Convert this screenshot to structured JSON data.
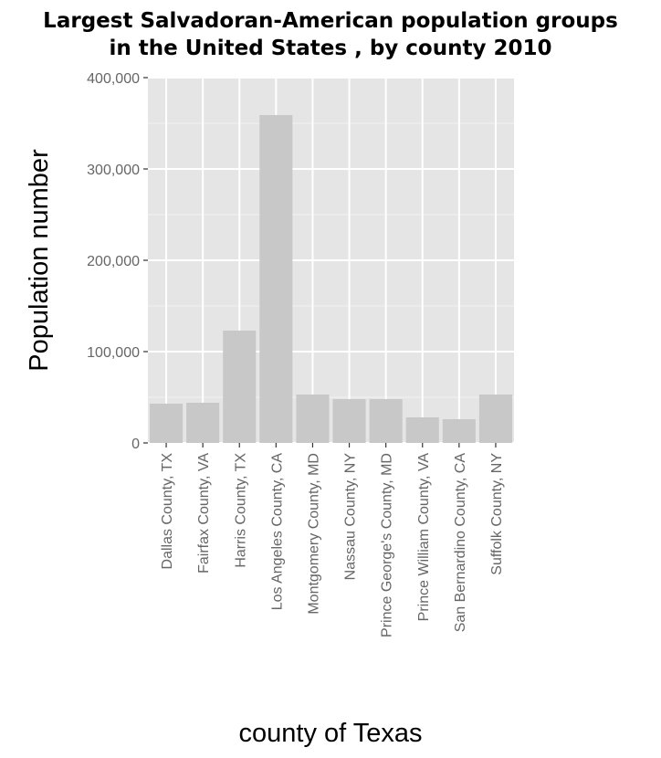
{
  "chart_data": {
    "type": "bar",
    "title": [
      "Largest Salvadoran-American population groups",
      "in the United States , by county 2010"
    ],
    "xlabel": "county of Texas",
    "ylabel": "Population number",
    "ylim": [
      0,
      400000
    ],
    "yticks": [
      0,
      100000,
      200000,
      300000,
      400000
    ],
    "ytick_labels": [
      "0",
      "100,000",
      "200,000",
      "300,000",
      "400,000"
    ],
    "grid": true,
    "bar_color": "#c8c8c8",
    "panel_color": "#e5e5e5",
    "categories": [
      "Dallas County, TX",
      "Fairfax County, VA",
      "Harris County, TX",
      "Los Angeles County, CA",
      "Montgomery County, MD",
      "Nassau County, NY",
      "Prince George's County, MD",
      "Prince William County, VA",
      "San Bernardino County, CA",
      "Suffolk County, NY"
    ],
    "values": [
      43000,
      44000,
      123000,
      359000,
      53000,
      48000,
      48000,
      28000,
      26000,
      53000
    ]
  }
}
